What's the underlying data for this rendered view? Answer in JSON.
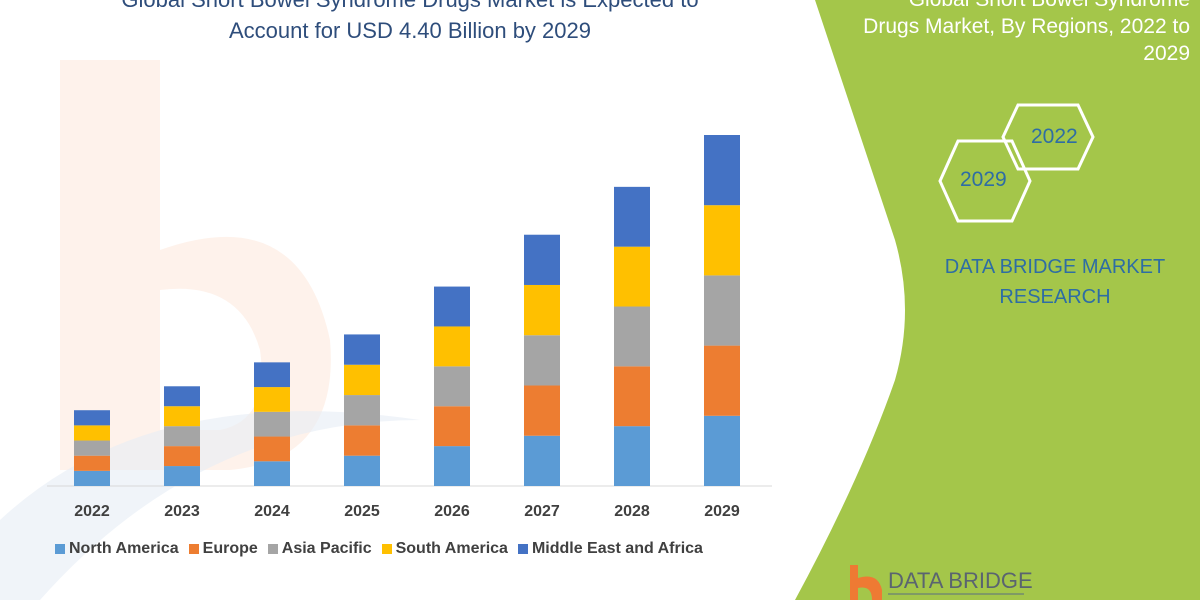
{
  "header": {
    "title_line1": "Global Short Bowel Syndrome Drugs Market is Expected to",
    "title_line2": "Account for USD 4.40 Billion by 2029"
  },
  "side_panel": {
    "title_line1": "Global Short Bowel Syndrome",
    "title_line2": "Drugs Market, By Regions, 2022 to",
    "title_line3": "2029",
    "hex_year_1": "2022",
    "hex_year_2": "2029",
    "brand_line1": "DATA BRIDGE MARKET",
    "brand_line2": "RESEARCH",
    "logo_text": "DATA BRIDGE",
    "panel_color": "#a4c64a"
  },
  "chart_data": {
    "type": "bar",
    "stacked": true,
    "categories": [
      "2022",
      "2023",
      "2024",
      "2025",
      "2026",
      "2027",
      "2028",
      "2029"
    ],
    "series": [
      {
        "name": "North America",
        "color": "#5b9bd5",
        "values": [
          0.19,
          0.25,
          0.31,
          0.38,
          0.5,
          0.63,
          0.75,
          0.88
        ]
      },
      {
        "name": "Europe",
        "color": "#ed7d31",
        "values": [
          0.19,
          0.25,
          0.31,
          0.38,
          0.5,
          0.63,
          0.75,
          0.88
        ]
      },
      {
        "name": "Asia Pacific",
        "color": "#a5a5a5",
        "values": [
          0.19,
          0.25,
          0.31,
          0.38,
          0.5,
          0.63,
          0.75,
          0.88
        ]
      },
      {
        "name": "South America",
        "color": "#ffc000",
        "values": [
          0.19,
          0.25,
          0.31,
          0.38,
          0.5,
          0.63,
          0.75,
          0.88
        ]
      },
      {
        "name": "Middle East and Africa",
        "color": "#4472c4",
        "values": [
          0.19,
          0.25,
          0.31,
          0.38,
          0.5,
          0.63,
          0.75,
          0.88
        ]
      }
    ],
    "ylim": [
      0,
      4.4
    ],
    "grid": false,
    "legend": "bottom",
    "xlabel": "",
    "ylabel": ""
  }
}
